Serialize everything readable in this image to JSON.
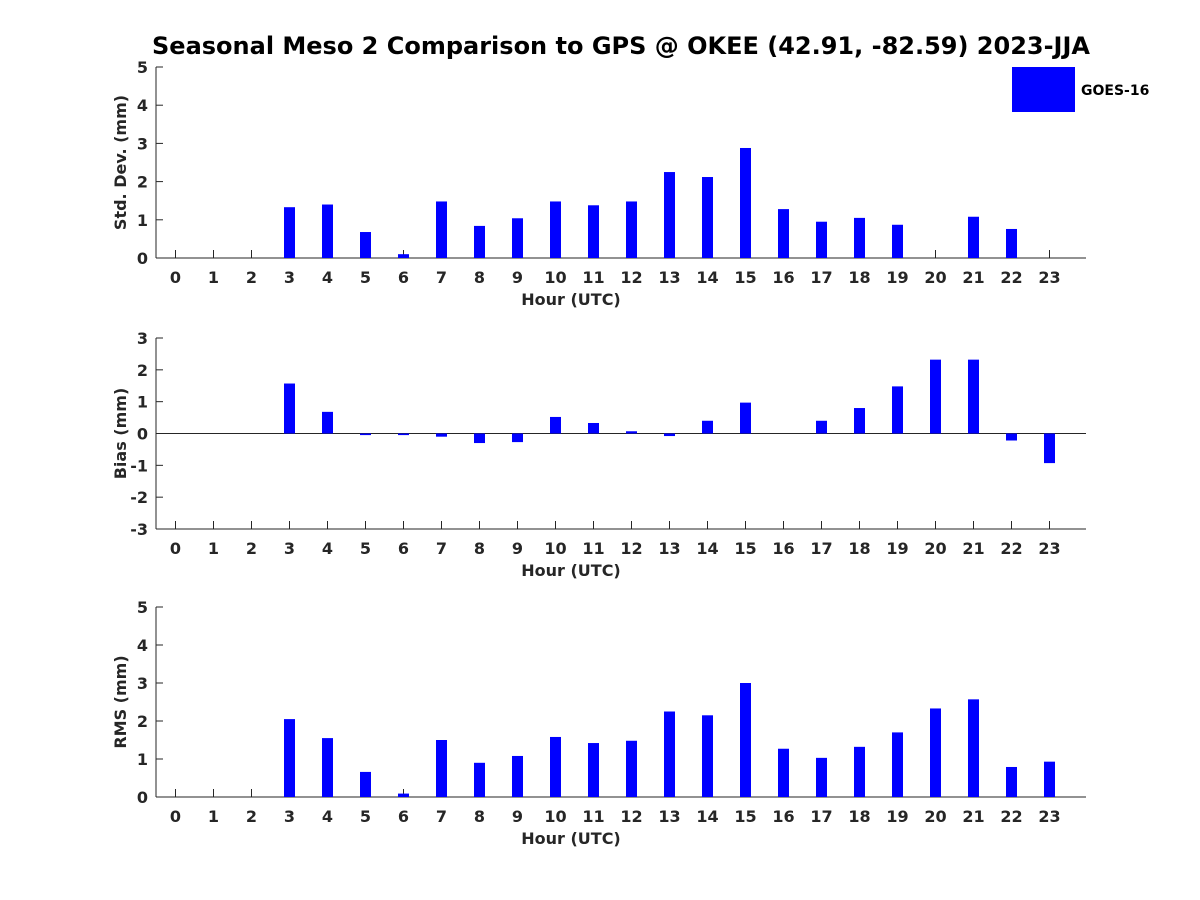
{
  "title": "Seasonal Meso 2 Comparison to GPS @ OKEE (42.91, -82.59) 2023-JJA",
  "legend": {
    "label": "GOES-16",
    "color": "#0000ff"
  },
  "chart_data": [
    {
      "type": "bar",
      "name": "std-dev",
      "ylabel": "Std. Dev. (mm)",
      "xlabel": "Hour (UTC)",
      "ylim": [
        0,
        5
      ],
      "yticks": [
        0,
        1,
        2,
        3,
        4,
        5
      ],
      "categories": [
        "0",
        "1",
        "2",
        "3",
        "4",
        "5",
        "6",
        "7",
        "8",
        "9",
        "10",
        "11",
        "12",
        "13",
        "14",
        "15",
        "16",
        "17",
        "18",
        "19",
        "20",
        "21",
        "22",
        "23"
      ],
      "series": [
        {
          "name": "GOES-16",
          "values": [
            0,
            0,
            0,
            1.33,
            1.4,
            0.68,
            0.1,
            1.48,
            0.84,
            1.04,
            1.48,
            1.38,
            1.48,
            2.25,
            2.12,
            2.88,
            1.28,
            0.95,
            1.05,
            0.87,
            0,
            1.08,
            0.76,
            0
          ]
        }
      ]
    },
    {
      "type": "bar",
      "name": "bias",
      "ylabel": "Bias (mm)",
      "xlabel": "Hour (UTC)",
      "ylim": [
        -3,
        3
      ],
      "yticks": [
        -3,
        -2,
        -1,
        0,
        1,
        2,
        3
      ],
      "categories": [
        "0",
        "1",
        "2",
        "3",
        "4",
        "5",
        "6",
        "7",
        "8",
        "9",
        "10",
        "11",
        "12",
        "13",
        "14",
        "15",
        "16",
        "17",
        "18",
        "19",
        "20",
        "21",
        "22",
        "23"
      ],
      "series": [
        {
          "name": "GOES-16",
          "values": [
            0,
            0,
            0,
            1.57,
            0.68,
            -0.05,
            -0.05,
            -0.1,
            -0.3,
            -0.27,
            0.52,
            0.33,
            0.07,
            -0.08,
            0.4,
            0.97,
            0,
            0.4,
            0.8,
            1.48,
            2.32,
            2.32,
            -0.22,
            -0.93
          ]
        }
      ]
    },
    {
      "type": "bar",
      "name": "rms",
      "ylabel": "RMS (mm)",
      "xlabel": "Hour (UTC)",
      "ylim": [
        0,
        5
      ],
      "yticks": [
        0,
        1,
        2,
        3,
        4,
        5
      ],
      "categories": [
        "0",
        "1",
        "2",
        "3",
        "4",
        "5",
        "6",
        "7",
        "8",
        "9",
        "10",
        "11",
        "12",
        "13",
        "14",
        "15",
        "16",
        "17",
        "18",
        "19",
        "20",
        "21",
        "22",
        "23"
      ],
      "series": [
        {
          "name": "GOES-16",
          "values": [
            0,
            0,
            0,
            2.05,
            1.55,
            0.66,
            0.09,
            1.5,
            0.9,
            1.08,
            1.58,
            1.42,
            1.48,
            2.25,
            2.15,
            3.0,
            1.27,
            1.03,
            1.32,
            1.7,
            2.33,
            2.57,
            0.79,
            0.93
          ]
        }
      ]
    }
  ]
}
